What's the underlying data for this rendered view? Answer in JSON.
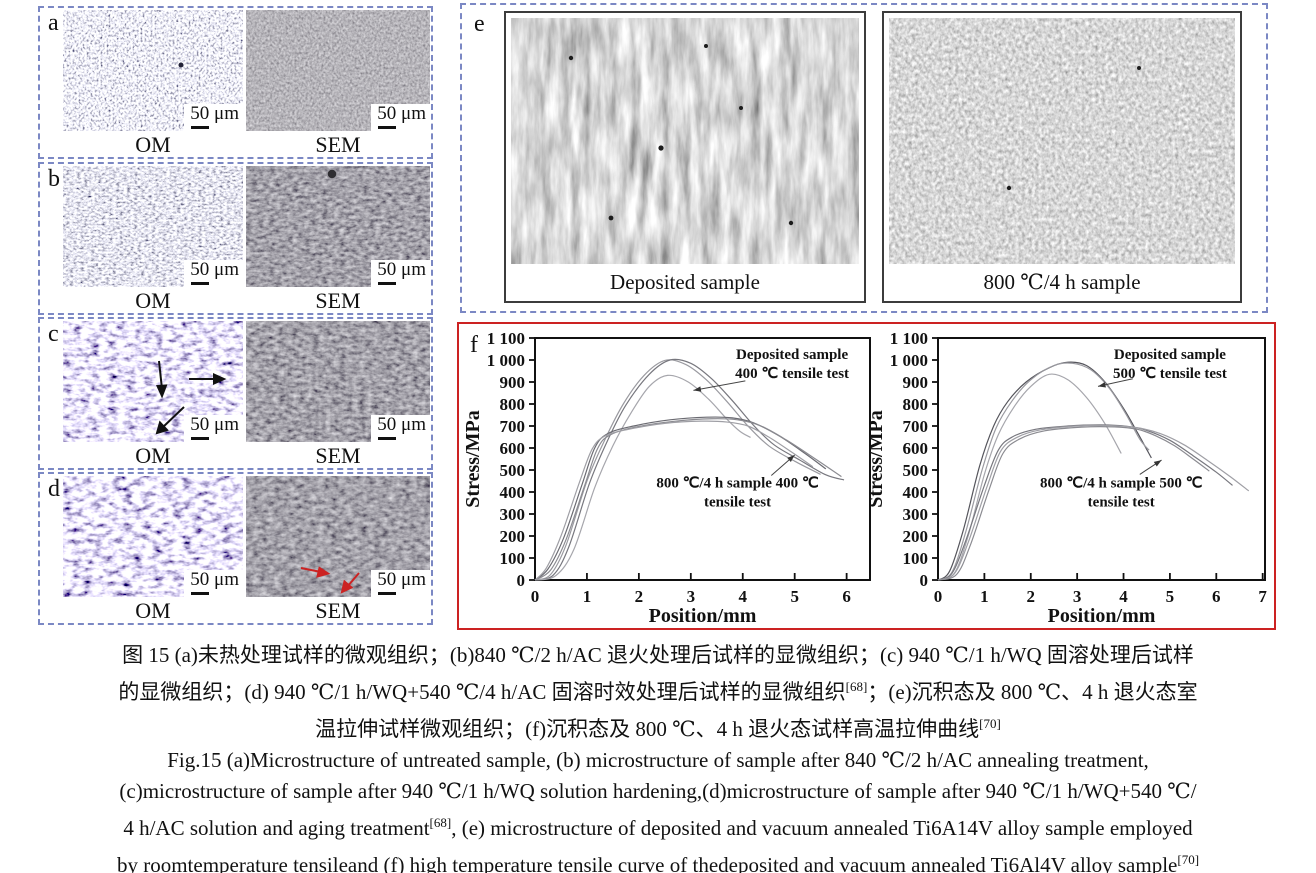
{
  "figure": {
    "scale_label": "50 μm",
    "om_label": "OM",
    "sem_label": "SEM",
    "panels": {
      "a": {
        "label": "a"
      },
      "b": {
        "label": "b"
      },
      "c": {
        "label": "c"
      },
      "d": {
        "label": "d"
      },
      "e": {
        "label": "e",
        "left_caption": "Deposited sample",
        "right_caption": "800 ℃/4 h sample"
      },
      "f": {
        "label": "f"
      }
    },
    "border_colors": {
      "dashed_box": "#7b88c4",
      "tensile_box": "#cc2222"
    }
  },
  "caption": {
    "cn1": "图 15  (a)未热处理试样的微观组织；(b)840 ℃/2 h/AC 退火处理后试样的显微组织；(c) 940 ℃/1 h/WQ 固溶处理后试样",
    "cn2_pre": "的显微组织；(d) 940 ℃/1 h/WQ+540 ℃/4 h/AC 固溶时效处理后试样的显微组织",
    "cn2_sup": "[68]",
    "cn2_post": "；(e)沉积态及 800 ℃、4 h 退火态室",
    "cn3_pre": "温拉伸试样微观组织；(f)沉积态及 800 ℃、4 h 退火态试样高温拉伸曲线",
    "cn3_sup": "[70]",
    "en1": "Fig.15 (a)Microstructure of untreated sample, (b) microstructure of sample after 840 ℃/2 h/AC annealing treatment,",
    "en2": "(c)microstructure of sample after 940 ℃/1 h/WQ solution hardening,(d)microstructure of sample after 940 ℃/1 h/WQ+540 ℃/",
    "en3_pre": "4 h/AC solution and aging treatment",
    "en3_sup": "[68]",
    "en3_post": ", (e) microstructure of deposited and vacuum annealed Ti6A14V alloy sample employed",
    "en4_pre": "by roomtemperature tensileand (f) high temperature tensile curve of thedeposited and vacuum annealed Ti6Al4V alloy sample",
    "en4_sup": "[70]"
  },
  "chart_data": [
    {
      "type": "line",
      "title": "",
      "xlabel": "Position/mm",
      "ylabel": "Stress/MPa",
      "xlim": [
        0,
        6.45
      ],
      "ylim": [
        0,
        1100
      ],
      "xticks": [
        0,
        1,
        2,
        3,
        4,
        5,
        6
      ],
      "yticks": [
        0,
        100,
        200,
        300,
        400,
        500,
        600,
        700,
        800,
        900,
        1000,
        1100
      ],
      "ytick_labels": [
        "0",
        "100",
        "200",
        "300",
        "400",
        "500",
        "600",
        "700",
        "800",
        "900",
        "1 000",
        "1 100"
      ],
      "grid": false,
      "legend": "annotations",
      "colors": [
        "#9a9aa0",
        "#77777e",
        "#a6a6ac",
        "#6b6b72",
        "#8b8b91",
        "#9f9fa5"
      ],
      "series": [
        {
          "name": "Deposited sample 400C test 1",
          "x": [
            0,
            0.3,
            0.6,
            1.0,
            1.35,
            1.7,
            2.1,
            2.5,
            2.9,
            3.3,
            3.7,
            4.1,
            4.5,
            5.0,
            5.5
          ],
          "y": [
            0,
            25,
            160,
            450,
            640,
            800,
            930,
            998,
            980,
            910,
            810,
            700,
            610,
            540,
            480
          ]
        },
        {
          "name": "Deposited sample 400C test 2",
          "x": [
            0,
            0.35,
            0.65,
            1.05,
            1.4,
            1.75,
            2.2,
            2.6,
            3.0,
            3.4,
            3.8,
            4.2,
            4.6,
            5.1,
            5.6,
            5.95
          ],
          "y": [
            0,
            22,
            150,
            440,
            635,
            795,
            935,
            1000,
            985,
            915,
            815,
            705,
            615,
            545,
            478,
            455
          ]
        },
        {
          "name": "Deposited sample 400C test 3",
          "x": [
            0,
            0.4,
            0.75,
            1.15,
            1.5,
            1.85,
            2.2,
            2.55,
            2.95,
            3.35,
            3.7,
            3.95,
            4.15
          ],
          "y": [
            0,
            20,
            140,
            420,
            610,
            760,
            880,
            930,
            900,
            820,
            730,
            675,
            648
          ]
        },
        {
          "name": "800C/4h sample 400C test 1",
          "x": [
            0,
            0.25,
            0.55,
            0.9,
            1.15,
            1.4,
            1.9,
            2.6,
            3.3,
            3.8,
            4.2,
            4.7,
            5.2,
            5.6
          ],
          "y": [
            0,
            50,
            190,
            430,
            600,
            665,
            700,
            728,
            740,
            737,
            715,
            655,
            575,
            505
          ]
        },
        {
          "name": "800C/4h sample 400C test 2",
          "x": [
            0,
            0.3,
            0.6,
            0.95,
            1.2,
            1.45,
            2.0,
            2.7,
            3.4,
            3.9,
            4.35,
            4.85,
            5.4,
            5.9
          ],
          "y": [
            0,
            45,
            185,
            425,
            595,
            660,
            698,
            722,
            733,
            728,
            700,
            635,
            550,
            470
          ]
        },
        {
          "name": "800C/4h sample 400C test 3",
          "x": [
            0,
            0.22,
            0.5,
            0.85,
            1.1,
            1.35,
            1.8,
            2.5,
            3.2,
            3.7,
            4.1,
            4.5,
            4.95,
            5.35
          ],
          "y": [
            0,
            55,
            200,
            440,
            595,
            655,
            685,
            712,
            722,
            718,
            700,
            650,
            580,
            515
          ]
        }
      ],
      "annotations": [
        {
          "lines": [
            "Deposited sample",
            "400 ℃ tensile test"
          ],
          "x": 4.95,
          "y": 1005,
          "arrow": {
            "x1": 4.05,
            "y1": 905,
            "x2": 3.05,
            "y2": 862
          }
        },
        {
          "lines": [
            "800 ℃/4 h sample 400 ℃",
            "tensile test"
          ],
          "x": 3.9,
          "y": 420,
          "arrow": {
            "x1": 4.55,
            "y1": 475,
            "x2": 5.0,
            "y2": 568
          }
        }
      ]
    },
    {
      "type": "line",
      "title": "",
      "xlabel": "Position/mm",
      "ylabel": "Stress/MPa",
      "xlim": [
        0,
        7.05
      ],
      "ylim": [
        0,
        1100
      ],
      "xticks": [
        0,
        1,
        2,
        3,
        4,
        5,
        6,
        7
      ],
      "yticks": [
        0,
        100,
        200,
        300,
        400,
        500,
        600,
        700,
        800,
        900,
        1000,
        1100
      ],
      "ytick_labels": [
        "0",
        "100",
        "200",
        "300",
        "400",
        "500",
        "600",
        "700",
        "800",
        "900",
        "1 000",
        "1 100"
      ],
      "grid": false,
      "legend": "annotations",
      "colors": [
        "#55555c",
        "#9a9aa0",
        "#a6a6ac",
        "#77777e",
        "#9f9fa5",
        "#8b8b91"
      ],
      "series": [
        {
          "name": "Deposited sample 500C test 1",
          "x": [
            0,
            0.25,
            0.55,
            0.9,
            1.2,
            1.5,
            1.9,
            2.4,
            2.8,
            3.2,
            3.6,
            4.0,
            4.3,
            4.6
          ],
          "y": [
            0,
            40,
            230,
            520,
            700,
            810,
            900,
            965,
            990,
            975,
            900,
            780,
            670,
            555
          ]
        },
        {
          "name": "Deposited sample 500C test 2",
          "x": [
            0,
            0.3,
            0.6,
            0.95,
            1.25,
            1.6,
            2.0,
            2.5,
            2.9,
            3.3,
            3.7,
            4.05,
            4.35,
            4.55
          ],
          "y": [
            0,
            35,
            220,
            500,
            690,
            815,
            910,
            975,
            985,
            955,
            870,
            755,
            640,
            590
          ]
        },
        {
          "name": "Deposited sample 500C test 3",
          "x": [
            0,
            0.35,
            0.65,
            1.0,
            1.3,
            1.65,
            2.0,
            2.4,
            2.8,
            3.2,
            3.6,
            3.95
          ],
          "y": [
            0,
            30,
            200,
            480,
            660,
            790,
            880,
            935,
            910,
            830,
            710,
            575
          ]
        },
        {
          "name": "800C/4h sample 500C test 1",
          "x": [
            0,
            0.3,
            0.6,
            1.0,
            1.3,
            1.6,
            2.1,
            2.8,
            3.5,
            4.1,
            4.5,
            5.0,
            5.5,
            6.0,
            6.35
          ],
          "y": [
            0,
            30,
            180,
            430,
            590,
            650,
            685,
            700,
            705,
            698,
            680,
            635,
            565,
            490,
            430
          ]
        },
        {
          "name": "800C/4h sample 500C test 2",
          "x": [
            0,
            0.35,
            0.65,
            1.05,
            1.35,
            1.7,
            2.2,
            3.0,
            3.7,
            4.3,
            4.8,
            5.3,
            5.8,
            6.3,
            6.7
          ],
          "y": [
            0,
            28,
            170,
            420,
            585,
            648,
            682,
            700,
            702,
            692,
            665,
            615,
            545,
            470,
            405
          ]
        },
        {
          "name": "800C/4h sample 500C test 3",
          "x": [
            0,
            0.4,
            0.7,
            1.1,
            1.4,
            1.75,
            2.3,
            3.1,
            3.8,
            4.3,
            4.7,
            5.1,
            5.5,
            5.85
          ],
          "y": [
            0,
            25,
            160,
            410,
            575,
            640,
            678,
            695,
            696,
            685,
            655,
            610,
            550,
            495
          ]
        }
      ],
      "annotations": [
        {
          "lines": [
            "Deposited sample",
            "500 ℃ tensile test"
          ],
          "x": 5.0,
          "y": 1005,
          "arrow": {
            "x1": 4.2,
            "y1": 915,
            "x2": 3.45,
            "y2": 880
          }
        },
        {
          "lines": [
            "800 ℃/4 h sample 500 ℃",
            "tensile test"
          ],
          "x": 3.95,
          "y": 420,
          "arrow": {
            "x1": 4.35,
            "y1": 480,
            "x2": 4.82,
            "y2": 545
          }
        }
      ]
    }
  ]
}
